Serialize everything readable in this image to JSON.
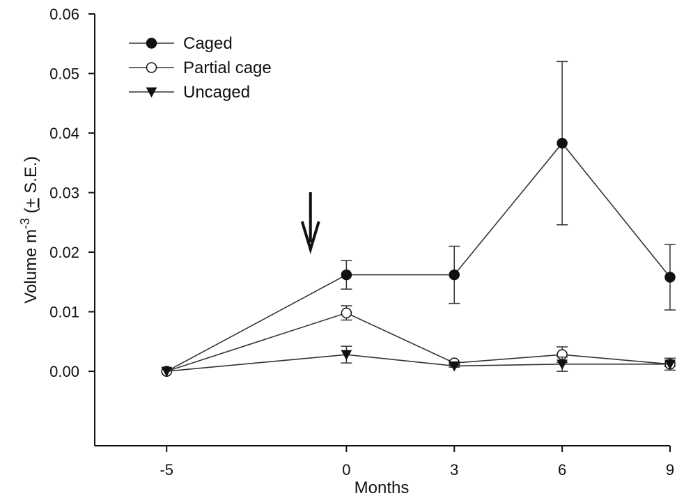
{
  "chart_data": {
    "type": "line",
    "xlabel": "Months",
    "ylabel": {
      "prefix": "Volume m",
      "exponent": "-3",
      "suffix_open": " (",
      "pm": "+",
      "suffix_rest": " S.E.)"
    },
    "x_ticks": [
      "-5",
      "0",
      "3",
      "6",
      "9"
    ],
    "x_values": [
      -5,
      0,
      3,
      6,
      9
    ],
    "y_ticks": [
      "0.00",
      "0.01",
      "0.02",
      "0.03",
      "0.04",
      "0.05",
      "0.06"
    ],
    "ylim": [
      -0.0125,
      0.06
    ],
    "xlim": [
      -7,
      9
    ],
    "grid": false,
    "legend_position": "top-left",
    "annotation": "downward arrow at month -1, marking start of treatment",
    "arrow_x": -1,
    "series": [
      {
        "name": "Caged",
        "marker": "filled-circle",
        "values": [
          0.0,
          0.0162,
          0.0162,
          0.0383,
          0.0158
        ],
        "se": [
          0.0,
          0.0024,
          0.0048,
          0.0137,
          0.0055
        ]
      },
      {
        "name": "Partial cage",
        "marker": "open-circle",
        "values": [
          0.0,
          0.0098,
          0.0014,
          0.0028,
          0.0012
        ],
        "se": [
          0.0,
          0.0012,
          0.0003,
          0.0013,
          0.0004
        ]
      },
      {
        "name": "Uncaged",
        "marker": "filled-triangle-down",
        "values": [
          0.0,
          0.0028,
          0.0009,
          0.0012,
          0.0012
        ],
        "se": [
          0.0,
          0.0014,
          0.0002,
          0.0012,
          0.001
        ]
      }
    ],
    "colors": {
      "line": "#333333",
      "marker": "#111111",
      "background": "#ffffff"
    }
  }
}
